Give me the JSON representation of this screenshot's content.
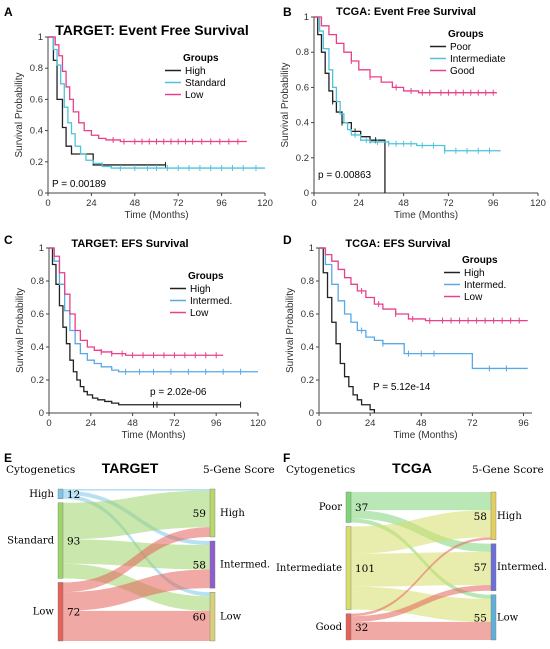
{
  "panels": {
    "A": {
      "letter": "A",
      "title": "TARGET: Event Free Survival"
    },
    "B": {
      "letter": "B",
      "title": "TCGA: Event Free Survival"
    },
    "C": {
      "letter": "C",
      "title": "TARGET: EFS Survival"
    },
    "D": {
      "letter": "D",
      "title": "TCGA: EFS Survival"
    },
    "E": {
      "letter": "E",
      "title": "TARGET",
      "left_header": "Cytogenetics",
      "right_header": "5-Gene Score"
    },
    "F": {
      "letter": "F",
      "title": "TCGA",
      "left_header": "Cytogenetics",
      "right_header": "5-Gene Score"
    }
  },
  "chart_data": [
    {
      "id": "A",
      "type": "line",
      "step": true,
      "title": "TARGET: Event Free Survival",
      "xlabel": "Time (Months)",
      "ylabel": "Survival Probability",
      "xlim": [
        0,
        120
      ],
      "ylim": [
        0,
        1
      ],
      "xticks": [
        0,
        24,
        48,
        72,
        96,
        120
      ],
      "yticks": [
        0,
        0.2,
        0.4,
        0.6,
        0.8,
        1
      ],
      "ytick_labels": [
        "0",
        "0.2",
        "0.4",
        "0.6",
        "0.8",
        "1"
      ],
      "legend_title": "Groups",
      "legend_position": "top-right",
      "pvalue_text": "P = 0.00189",
      "colors": {
        "High": "#222222",
        "Standard": "#4fc3dd",
        "Low": "#e8408a"
      },
      "series": [
        {
          "name": "High",
          "x": [
            0,
            3,
            5,
            8,
            10,
            13,
            17,
            20,
            25,
            65
          ],
          "y": [
            1,
            0.85,
            0.6,
            0.42,
            0.3,
            0.25,
            0.25,
            0.25,
            0.18,
            0.18
          ],
          "censor": [
            65
          ]
        },
        {
          "name": "Standard",
          "x": [
            0,
            3,
            5,
            7,
            9,
            11,
            13,
            15,
            18,
            21,
            25,
            30,
            35,
            120
          ],
          "y": [
            1,
            0.92,
            0.82,
            0.7,
            0.55,
            0.45,
            0.38,
            0.3,
            0.25,
            0.21,
            0.19,
            0.17,
            0.16,
            0.16
          ],
          "censor": [
            40,
            48,
            55,
            60,
            66,
            72,
            78,
            84,
            90,
            96,
            102,
            108,
            115
          ]
        },
        {
          "name": "Low",
          "x": [
            0,
            4,
            6,
            8,
            10,
            12,
            14,
            17,
            20,
            24,
            28,
            32,
            40,
            110
          ],
          "y": [
            1,
            0.95,
            0.88,
            0.78,
            0.68,
            0.6,
            0.52,
            0.45,
            0.4,
            0.37,
            0.35,
            0.34,
            0.33,
            0.33
          ],
          "censor": [
            36,
            42,
            48,
            52,
            56,
            60,
            64,
            68,
            72,
            76,
            80,
            85,
            90,
            95,
            100,
            105
          ]
        }
      ]
    },
    {
      "id": "B",
      "type": "line",
      "step": true,
      "title": "TCGA: Event Free Survival",
      "xlabel": "Time (Months)",
      "ylabel": "Survival Probability",
      "xlim": [
        0,
        120
      ],
      "ylim": [
        0,
        1
      ],
      "xticks": [
        0,
        24,
        48,
        72,
        96,
        120
      ],
      "yticks": [
        0,
        0.2,
        0.4,
        0.6,
        0.8,
        1
      ],
      "ytick_labels": [
        "0",
        "0.2",
        "0.4",
        "0.6",
        "0.8",
        "1"
      ],
      "legend_title": "Groups",
      "legend_position": "top-right",
      "pvalue_text": "p = 0.00863",
      "colors": {
        "Poor": "#222222",
        "Intermediate": "#4fc3dd",
        "Good": "#e8408a"
      },
      "series": [
        {
          "name": "Poor",
          "x": [
            0,
            2,
            4,
            6,
            8,
            10,
            12,
            15,
            20,
            25,
            30,
            38
          ],
          "y": [
            1,
            0.9,
            0.8,
            0.68,
            0.58,
            0.52,
            0.46,
            0.4,
            0.35,
            0.32,
            0.3,
            0
          ],
          "censor": [
            10,
            15,
            22,
            30,
            33
          ]
        },
        {
          "name": "Intermediate",
          "x": [
            0,
            3,
            5,
            8,
            10,
            12,
            14,
            16,
            18,
            20,
            25,
            30,
            40,
            55,
            70,
            100
          ],
          "y": [
            1,
            0.92,
            0.82,
            0.7,
            0.6,
            0.52,
            0.45,
            0.4,
            0.36,
            0.33,
            0.3,
            0.29,
            0.28,
            0.27,
            0.24,
            0.24
          ],
          "censor": [
            22,
            28,
            34,
            40,
            44,
            48,
            52,
            58,
            64,
            70,
            76,
            82,
            88,
            94
          ]
        },
        {
          "name": "Good",
          "x": [
            0,
            4,
            8,
            12,
            16,
            20,
            24,
            30,
            36,
            42,
            48,
            56,
            98
          ],
          "y": [
            1,
            0.95,
            0.9,
            0.85,
            0.8,
            0.75,
            0.7,
            0.66,
            0.63,
            0.6,
            0.58,
            0.57,
            0.57
          ],
          "censor": [
            20,
            30,
            44,
            52,
            58,
            62,
            68,
            72,
            76,
            80,
            84,
            88,
            92,
            96
          ]
        }
      ]
    },
    {
      "id": "C",
      "type": "line",
      "step": true,
      "title": "TARGET: EFS Survival",
      "xlabel": "Time (Months)",
      "ylabel": "Survival Probability",
      "xlim": [
        0,
        120
      ],
      "ylim": [
        0,
        1
      ],
      "xticks": [
        0,
        24,
        48,
        72,
        96,
        120
      ],
      "yticks": [
        0,
        0.2,
        0.4,
        0.6,
        0.8,
        1
      ],
      "ytick_labels": [
        "0",
        "0.2",
        "0.4",
        "0.6",
        "0.8",
        "1"
      ],
      "legend_title": "Groups",
      "legend_position": "top-right",
      "pvalue_text": "p = 2.02e-06",
      "colors": {
        "High": "#222222",
        "Intermed.": "#58a9e6",
        "Low": "#e8408a"
      },
      "series": [
        {
          "name": "High",
          "x": [
            0,
            2,
            4,
            6,
            8,
            10,
            12,
            14,
            16,
            18,
            20,
            22,
            25,
            28,
            32,
            36,
            40,
            50,
            110
          ],
          "y": [
            1,
            0.9,
            0.78,
            0.65,
            0.52,
            0.42,
            0.32,
            0.25,
            0.2,
            0.16,
            0.13,
            0.11,
            0.09,
            0.08,
            0.07,
            0.06,
            0.05,
            0.05,
            0.05
          ],
          "censor": [
            60,
            62,
            110
          ]
        },
        {
          "name": "Intermed.",
          "x": [
            0,
            3,
            6,
            9,
            12,
            15,
            18,
            22,
            26,
            30,
            36,
            40,
            120
          ],
          "y": [
            1,
            0.92,
            0.78,
            0.62,
            0.5,
            0.42,
            0.36,
            0.32,
            0.3,
            0.28,
            0.26,
            0.25,
            0.25
          ],
          "censor": [
            44,
            52,
            60,
            70,
            80,
            90,
            100,
            110
          ]
        },
        {
          "name": "Low",
          "x": [
            0,
            3,
            6,
            9,
            12,
            15,
            18,
            22,
            26,
            30,
            36,
            44,
            100
          ],
          "y": [
            1,
            0.95,
            0.85,
            0.72,
            0.6,
            0.5,
            0.44,
            0.4,
            0.38,
            0.37,
            0.36,
            0.35,
            0.35
          ],
          "censor": [
            30,
            36,
            42,
            48,
            54,
            60,
            66,
            72,
            78,
            84,
            90,
            96
          ]
        }
      ]
    },
    {
      "id": "D",
      "type": "line",
      "step": true,
      "title": "TCGA: EFS Survival",
      "xlabel": "Time (Months)",
      "ylabel": "Survival Probability",
      "xlim": [
        0,
        100
      ],
      "ylim": [
        0,
        1
      ],
      "xticks": [
        0,
        24,
        48,
        72,
        96
      ],
      "yticks": [
        0,
        0.2,
        0.4,
        0.6,
        0.8,
        1
      ],
      "ytick_labels": [
        "0",
        "0.2",
        "0.4",
        "0.6",
        "0.8",
        "1"
      ],
      "legend_title": "Groups",
      "legend_position": "top-right",
      "pvalue_text": "P = 5.12e-14",
      "colors": {
        "High": "#222222",
        "Intermed.": "#58a9e6",
        "Low": "#e8408a"
      },
      "series": [
        {
          "name": "High",
          "x": [
            0,
            2,
            4,
            6,
            8,
            10,
            12,
            14,
            16,
            18,
            20,
            24,
            26
          ],
          "y": [
            1,
            0.85,
            0.7,
            0.55,
            0.42,
            0.3,
            0.22,
            0.16,
            0.11,
            0.08,
            0.05,
            0.02,
            0
          ],
          "censor": []
        },
        {
          "name": "Intermed.",
          "x": [
            0,
            3,
            6,
            9,
            12,
            15,
            18,
            22,
            26,
            30,
            36,
            40,
            50,
            60,
            72,
            98
          ],
          "y": [
            1,
            0.9,
            0.78,
            0.68,
            0.6,
            0.55,
            0.5,
            0.46,
            0.44,
            0.42,
            0.42,
            0.36,
            0.36,
            0.36,
            0.27,
            0.27
          ],
          "censor": [
            20,
            30,
            42,
            48,
            54,
            80,
            88
          ]
        },
        {
          "name": "Low",
          "x": [
            0,
            3,
            6,
            9,
            12,
            15,
            18,
            22,
            26,
            30,
            36,
            42,
            50,
            98
          ],
          "y": [
            1,
            0.96,
            0.92,
            0.87,
            0.82,
            0.78,
            0.74,
            0.7,
            0.66,
            0.63,
            0.6,
            0.57,
            0.56,
            0.56
          ],
          "censor": [
            20,
            28,
            36,
            44,
            52,
            58,
            62,
            66,
            70,
            74,
            78,
            82,
            86,
            90,
            94
          ]
        }
      ]
    },
    {
      "id": "E",
      "type": "sankey",
      "title": "TARGET",
      "left_header": "Cytogenetics",
      "right_header": "5-Gene Score",
      "sources": [
        {
          "name": "High",
          "count": 12,
          "color": "#7cc7e8"
        },
        {
          "name": "Standard",
          "count": 93,
          "color": "#9ed36a"
        },
        {
          "name": "Low",
          "count": 72,
          "color": "#e5625b"
        }
      ],
      "targets": [
        {
          "name": "High",
          "count": 59,
          "color": "#b8d96a"
        },
        {
          "name": "Intermed.",
          "count": 58,
          "color": "#8b5fd0"
        },
        {
          "name": "Low",
          "count": 60,
          "color": "#d7d27a"
        }
      ],
      "flows": [
        {
          "source": "High",
          "target": "High",
          "value": 2
        },
        {
          "source": "High",
          "target": "Intermed.",
          "value": 5
        },
        {
          "source": "High",
          "target": "Low",
          "value": 5
        },
        {
          "source": "Standard",
          "target": "High",
          "value": 45
        },
        {
          "source": "Standard",
          "target": "Intermed.",
          "value": 30
        },
        {
          "source": "Standard",
          "target": "Low",
          "value": 18
        },
        {
          "source": "Low",
          "target": "High",
          "value": 12
        },
        {
          "source": "Low",
          "target": "Intermed.",
          "value": 23
        },
        {
          "source": "Low",
          "target": "Low",
          "value": 37
        }
      ]
    },
    {
      "id": "F",
      "type": "sankey",
      "title": "TCGA",
      "left_header": "Cytogenetics",
      "right_header": "5-Gene Score",
      "sources": [
        {
          "name": "Poor",
          "count": 37,
          "color": "#7fd67a"
        },
        {
          "name": "Intermediate",
          "count": 101,
          "color": "#d6df6a"
        },
        {
          "name": "Good",
          "count": 32,
          "color": "#e5625b"
        }
      ],
      "targets": [
        {
          "name": "High",
          "count": 58,
          "color": "#e3cf5f"
        },
        {
          "name": "Intermed.",
          "count": 57,
          "color": "#6d6fd8"
        },
        {
          "name": "Low",
          "count": 55,
          "color": "#5fb0d8"
        }
      ],
      "flows": [
        {
          "source": "Poor",
          "target": "High",
          "value": 22
        },
        {
          "source": "Poor",
          "target": "Intermed.",
          "value": 10
        },
        {
          "source": "Poor",
          "target": "Low",
          "value": 5
        },
        {
          "source": "Intermediate",
          "target": "High",
          "value": 33
        },
        {
          "source": "Intermediate",
          "target": "Intermed.",
          "value": 40
        },
        {
          "source": "Intermediate",
          "target": "Low",
          "value": 28
        },
        {
          "source": "Good",
          "target": "High",
          "value": 3
        },
        {
          "source": "Good",
          "target": "Intermed.",
          "value": 7
        },
        {
          "source": "Good",
          "target": "Low",
          "value": 22
        }
      ]
    }
  ]
}
